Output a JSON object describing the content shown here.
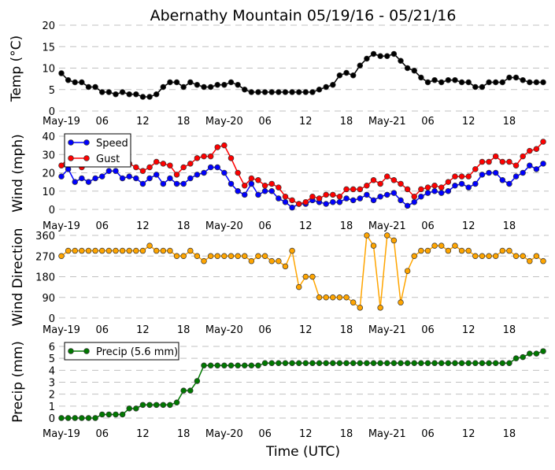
{
  "chart_data": [
    {
      "type": "line",
      "title": "Abernathy Mountain 05/19/16 - 05/21/16",
      "ylabel": "Temp (°C)",
      "ylim": [
        0,
        20
      ],
      "yticks": [
        "0",
        "5",
        "10",
        "15",
        "20"
      ],
      "xticks": [
        "May-19",
        "06",
        "12",
        "18",
        "May-20",
        "06",
        "12",
        "18",
        "May-21",
        "06",
        "12",
        "18"
      ],
      "x_hours_from_start": "0..71 hourly",
      "series": [
        {
          "name": "Temp",
          "color": "#000000",
          "values": [
            8.8,
            7.2,
            6.7,
            6.7,
            5.6,
            5.6,
            4.4,
            4.4,
            3.9,
            4.4,
            3.9,
            3.9,
            3.3,
            3.3,
            3.9,
            5.6,
            6.7,
            6.7,
            5.6,
            6.7,
            6.1,
            5.6,
            5.6,
            6.1,
            6.1,
            6.7,
            6.1,
            5.0,
            4.4,
            4.4,
            4.4,
            4.4,
            4.4,
            4.4,
            4.4,
            4.4,
            4.4,
            4.4,
            5.0,
            5.6,
            6.1,
            8.3,
            8.9,
            8.3,
            10.6,
            12.2,
            13.3,
            12.8,
            12.8,
            13.3,
            11.7,
            10.0,
            9.4,
            7.8,
            6.7,
            7.2,
            6.7,
            7.2,
            7.2,
            6.7,
            6.7,
            5.6,
            5.6,
            6.7,
            6.7,
            6.7,
            7.8,
            7.8,
            7.2,
            6.7,
            6.7,
            6.7
          ]
        }
      ]
    },
    {
      "type": "line",
      "ylabel": "Wind (mph)",
      "ylim": [
        0,
        40
      ],
      "yticks": [
        "0",
        "10",
        "20",
        "30",
        "40"
      ],
      "xticks": [
        "May-19",
        "06",
        "12",
        "18",
        "May-20",
        "06",
        "12",
        "18",
        "May-21",
        "06",
        "12",
        "18"
      ],
      "legend": "top-left",
      "series": [
        {
          "name": "Speed",
          "color": "#0000ff",
          "values": [
            18,
            22,
            15,
            17,
            15,
            17,
            18,
            21,
            21,
            17,
            18,
            17,
            14,
            17,
            19,
            14,
            17,
            14,
            14,
            17,
            19,
            20,
            23,
            23,
            20,
            14,
            10,
            8,
            14,
            8,
            10,
            10,
            6,
            4,
            1,
            3,
            3,
            5,
            4,
            3,
            4,
            4,
            6,
            5,
            6,
            8,
            5,
            7,
            8,
            9,
            5,
            2,
            4,
            7,
            9,
            10,
            9,
            10,
            13,
            14,
            12,
            14,
            19,
            20,
            20,
            16,
            14,
            18,
            20,
            24,
            22,
            25
          ]
        },
        {
          "name": "Gust",
          "color": "#ff0000",
          "values": [
            24,
            28,
            26,
            23,
            25,
            26,
            27,
            28,
            27,
            26,
            25,
            23,
            21,
            23,
            26,
            25,
            24,
            19,
            23,
            25,
            28,
            29,
            29,
            34,
            35,
            28,
            20,
            13,
            17,
            16,
            13,
            14,
            12,
            7,
            5,
            3,
            4,
            7,
            6,
            8,
            8,
            7,
            11,
            11,
            11,
            13,
            16,
            14,
            18,
            16,
            14,
            11,
            7,
            11,
            12,
            13,
            12,
            15,
            18,
            18,
            18,
            22,
            26,
            26,
            29,
            26,
            26,
            24,
            29,
            32,
            33,
            37
          ]
        }
      ]
    },
    {
      "type": "line",
      "ylabel": "Wind Direction",
      "ylim": [
        0,
        360
      ],
      "yticks": [
        "0",
        "90",
        "180",
        "270",
        "360"
      ],
      "xticks": [
        "May-19",
        "06",
        "12",
        "18",
        "May-20",
        "06",
        "12",
        "18",
        "May-21",
        "06",
        "12",
        "18"
      ],
      "series": [
        {
          "name": "Direction",
          "color": "#ffa500",
          "values": [
            270,
            293,
            293,
            293,
            293,
            293,
            293,
            293,
            293,
            293,
            293,
            293,
            293,
            315,
            293,
            293,
            293,
            270,
            270,
            293,
            270,
            248,
            270,
            270,
            270,
            270,
            270,
            270,
            248,
            270,
            270,
            248,
            248,
            225,
            293,
            135,
            180,
            180,
            90,
            90,
            90,
            90,
            90,
            68,
            45,
            360,
            315,
            45,
            360,
            338,
            68,
            205,
            270,
            293,
            293,
            315,
            315,
            293,
            315,
            293,
            293,
            270,
            270,
            270,
            270,
            293,
            293,
            270,
            270,
            248,
            270,
            248
          ]
        }
      ]
    },
    {
      "type": "line",
      "ylabel": "Precip (mm)",
      "xlabel": "Time (UTC)",
      "ylim": [
        0,
        6
      ],
      "yticks": [
        "0",
        "1",
        "2",
        "3",
        "4",
        "5",
        "6"
      ],
      "xticks": [
        "May-19",
        "06",
        "12",
        "18",
        "May-20",
        "06",
        "12",
        "18",
        "May-21",
        "06",
        "12",
        "18"
      ],
      "legend": "top-left",
      "series": [
        {
          "name": "Precip (5.6 mm)",
          "color": "#007800",
          "values": [
            0,
            0,
            0,
            0,
            0,
            0,
            0.3,
            0.3,
            0.3,
            0.3,
            0.8,
            0.8,
            1.1,
            1.1,
            1.1,
            1.1,
            1.1,
            1.3,
            2.3,
            2.3,
            3.1,
            4.4,
            4.4,
            4.4,
            4.4,
            4.4,
            4.4,
            4.4,
            4.4,
            4.4,
            4.6,
            4.6,
            4.6,
            4.6,
            4.6,
            4.6,
            4.6,
            4.6,
            4.6,
            4.6,
            4.6,
            4.6,
            4.6,
            4.6,
            4.6,
            4.6,
            4.6,
            4.6,
            4.6,
            4.6,
            4.6,
            4.6,
            4.6,
            4.6,
            4.6,
            4.6,
            4.6,
            4.6,
            4.6,
            4.6,
            4.6,
            4.6,
            4.6,
            4.6,
            4.6,
            4.6,
            4.6,
            5.0,
            5.1,
            5.4,
            5.4,
            5.6
          ]
        }
      ]
    }
  ]
}
